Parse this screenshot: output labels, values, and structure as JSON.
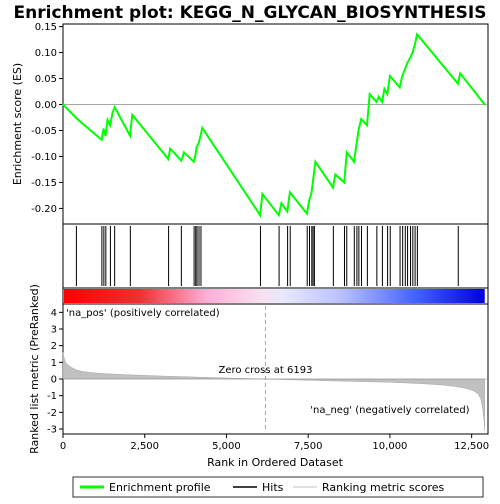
{
  "chart_data": {
    "type": "line",
    "title": "Enrichment plot: KEGG_N_GLYCAN_BIOSYNTHESIS",
    "top_panel": {
      "ylabel": "Enrichment score (ES)",
      "ylim": [
        -0.23,
        0.155
      ],
      "yticks": [
        -0.2,
        -0.15,
        -0.1,
        -0.05,
        0.0,
        0.05,
        0.1,
        0.15
      ],
      "ytick_labels": [
        "-0.20",
        "-0.15",
        "-0.10",
        "-0.05",
        "0.00",
        "0.05",
        "0.10",
        "0.15"
      ],
      "series": [
        {
          "name": "Enrichment profile",
          "color": "#00ff00",
          "x": [
            0,
            440,
            1180,
            1240,
            1300,
            1360,
            1440,
            1520,
            1580,
            2050,
            2120,
            3220,
            3280,
            3620,
            3700,
            4000,
            4050,
            4090,
            4150,
            4210,
            4260,
            6030,
            6100,
            6600,
            6680,
            6860,
            6940,
            7460,
            7530,
            7600,
            7640,
            7680,
            7720,
            8260,
            8330,
            8600,
            8680,
            8900,
            8980,
            9040,
            9120,
            9300,
            9380,
            9590,
            9660,
            9760,
            9830,
            9920,
            10000,
            10300,
            10380,
            10460,
            10530,
            10620,
            10690,
            10760,
            10830,
            12080,
            12150,
            12900
          ],
          "y": [
            0.0,
            -0.028,
            -0.068,
            -0.047,
            -0.06,
            -0.03,
            -0.04,
            -0.015,
            -0.005,
            -0.06,
            -0.02,
            -0.105,
            -0.085,
            -0.108,
            -0.092,
            -0.11,
            -0.098,
            -0.082,
            -0.074,
            -0.06,
            -0.045,
            -0.213,
            -0.172,
            -0.213,
            -0.19,
            -0.206,
            -0.169,
            -0.21,
            -0.185,
            -0.17,
            -0.15,
            -0.13,
            -0.11,
            -0.16,
            -0.135,
            -0.15,
            -0.092,
            -0.11,
            -0.075,
            -0.05,
            -0.028,
            -0.04,
            0.02,
            0.005,
            0.015,
            0.005,
            0.03,
            0.02,
            0.055,
            0.033,
            0.055,
            0.068,
            0.08,
            0.09,
            0.1,
            0.115,
            0.135,
            0.04,
            0.06,
            0.0
          ]
        }
      ]
    },
    "hits": {
      "name": "Hits",
      "x": [
        410,
        1190,
        1250,
        1310,
        1450,
        1580,
        2060,
        3230,
        3620,
        4010,
        4060,
        4100,
        4160,
        4220,
        6040,
        6610,
        6870,
        6950,
        7470,
        7540,
        7610,
        7650,
        7690,
        8270,
        8610,
        8680,
        8910,
        8990,
        9050,
        9130,
        9310,
        9600,
        9770,
        9930,
        10010,
        10310,
        10390,
        10470,
        10540,
        10630,
        10700,
        10770,
        10840,
        12090
      ]
    },
    "bottom_panel": {
      "xlabel": "Rank in Ordered Dataset",
      "ylabel": "Ranked list metric (PreRanked)",
      "xlim": [
        0,
        13000
      ],
      "ylim": [
        -3.3,
        4.5
      ],
      "xticks": [
        0,
        2500,
        5000,
        7500,
        10000,
        12500
      ],
      "xtick_labels": [
        "0",
        "2,500",
        "5,000",
        "7,500",
        "10,000",
        "12,500"
      ],
      "yticks": [
        -3,
        -2,
        -1,
        0,
        1,
        2,
        3,
        4
      ],
      "ytick_labels": [
        "-3",
        "-2",
        "-1",
        "0",
        "1",
        "2",
        "3",
        "4"
      ],
      "series": [
        {
          "name": "Ranking metric scores",
          "color": "#c0c0c0",
          "x": [
            0,
            30,
            80,
            150,
            250,
            400,
            600,
            900,
            1300,
            2000,
            3000,
            4000,
            5000,
            6193,
            7000,
            8000,
            9000,
            10000,
            11000,
            11600,
            12000,
            12300,
            12550,
            12700,
            12780,
            12840,
            12880,
            12900
          ],
          "y": [
            1.6,
            1.3,
            1.0,
            0.85,
            0.7,
            0.55,
            0.45,
            0.38,
            0.32,
            0.25,
            0.18,
            0.12,
            0.06,
            0.0,
            -0.05,
            -0.1,
            -0.15,
            -0.2,
            -0.28,
            -0.36,
            -0.45,
            -0.55,
            -0.7,
            -0.9,
            -1.2,
            -1.8,
            -2.5,
            -3.1
          ]
        }
      ],
      "zero_cross_rank": 6193,
      "annotations": {
        "zero_cross": "Zero cross at 6193",
        "na_pos": "'na_pos' (positively correlated)",
        "na_neg": "'na_neg' (negatively correlated)"
      }
    },
    "legend": {
      "placement": "bottom",
      "entries": [
        {
          "label": "Enrichment profile",
          "color": "#00ff00"
        },
        {
          "label": "Hits",
          "color": "#000000"
        },
        {
          "label": "Ranking metric scores",
          "color": "#c0c0c0"
        }
      ]
    },
    "colors": {
      "positive": "#ff0000",
      "negative": "#0000ff",
      "na_pos_text": "#cc0000",
      "na_neg_text": "#0000cc"
    }
  }
}
